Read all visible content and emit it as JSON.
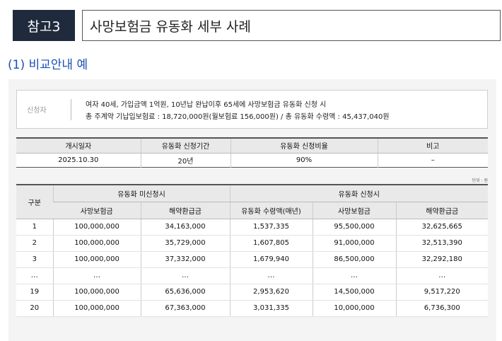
{
  "header": {
    "tag": "참고3",
    "title": "사망보험금 유동화 세부 사례"
  },
  "subtitle": "(1) 비교안내 예",
  "applicant": {
    "label": "신청자",
    "line1": "여자 40세, 가입금액 1억원, 10년납 완납이후 65세에 사망보험금 유동화 신청 시",
    "line2": "총 주계약 기납입보험료 : 18,720,000원(월보험료 156,000원) / 총 유동화 수령액 : 45,437,040원"
  },
  "summary": {
    "headers": [
      "개시일자",
      "유동화 신청기간",
      "유동화 신청비율",
      "비고"
    ],
    "values": [
      "2025.10.30",
      "20년",
      "90%",
      "–"
    ]
  },
  "unit": "단위 : 원",
  "detail": {
    "col_group": "구분",
    "group1": "유동화 미신청시",
    "group2": "유동화 신청시",
    "sub_headers": [
      "사망보험금",
      "해약환급금",
      "유동화 수령액(매년)",
      "사망보험금",
      "해약환급금"
    ],
    "rows": [
      [
        "1",
        "100,000,000",
        "34,163,000",
        "1,537,335",
        "95,500,000",
        "32,625,665"
      ],
      [
        "2",
        "100,000,000",
        "35,729,000",
        "1,607,805",
        "91,000,000",
        "32,513,390"
      ],
      [
        "3",
        "100,000,000",
        "37,332,000",
        "1,679,940",
        "86,500,000",
        "32,292,180"
      ],
      [
        "…",
        "…",
        "…",
        "…",
        "…",
        "…"
      ],
      [
        "19",
        "100,000,000",
        "65,636,000",
        "2,953,620",
        "14,500,000",
        "9,517,220"
      ],
      [
        "20",
        "100,000,000",
        "67,363,000",
        "3,031,335",
        "10,000,000",
        "6,736,300"
      ]
    ]
  }
}
